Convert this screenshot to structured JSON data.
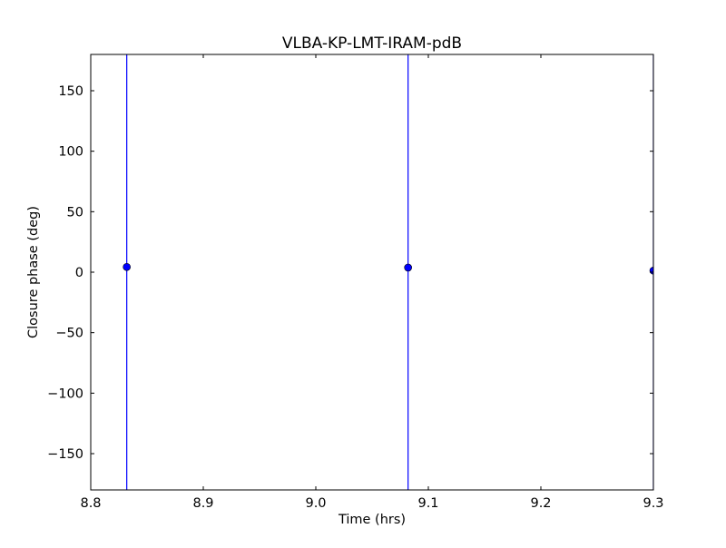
{
  "chart_data": {
    "type": "scatter",
    "title": "VLBA-KP-LMT-IRAM-pdB",
    "xlabel": "Time (hrs)",
    "ylabel": "Closure phase (deg)",
    "xlim": [
      8.8,
      9.3
    ],
    "ylim": [
      -180,
      180
    ],
    "xticks": [
      8.8,
      8.9,
      9.0,
      9.1,
      9.2,
      9.3
    ],
    "xtick_labels": [
      "8.8",
      "8.9",
      "9.0",
      "9.1",
      "9.2",
      "9.3"
    ],
    "yticks": [
      150,
      100,
      50,
      0,
      -50,
      -100,
      -150
    ],
    "ytick_labels": [
      "150",
      "100",
      "50",
      "0",
      "−50",
      "−100",
      "−150"
    ],
    "grid": false,
    "marker_color": "#0000ff",
    "points": [
      {
        "x": 8.832,
        "y": 4.3,
        "yerr_low": -180,
        "yerr_high": 180
      },
      {
        "x": 9.082,
        "y": 3.8,
        "yerr_low": -180,
        "yerr_high": 180
      },
      {
        "x": 9.3,
        "y": 1.3,
        "yerr_low": -180,
        "yerr_high": 180
      }
    ]
  }
}
